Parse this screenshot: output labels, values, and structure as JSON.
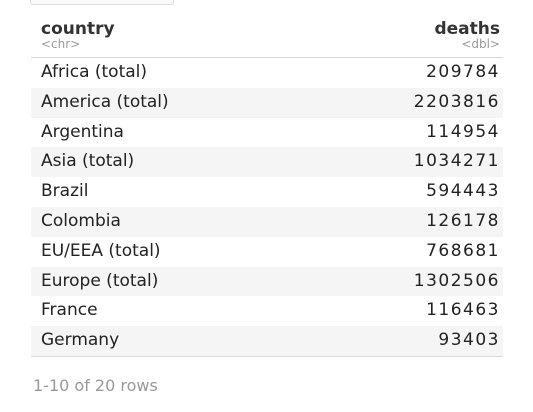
{
  "table": {
    "columns": [
      {
        "name": "country",
        "type": "<chr>"
      },
      {
        "name": "deaths",
        "type": "<dbl>"
      }
    ],
    "rows": [
      {
        "country": "Africa (total)",
        "deaths": "209784"
      },
      {
        "country": "America (total)",
        "deaths": "2203816"
      },
      {
        "country": "Argentina",
        "deaths": "114954"
      },
      {
        "country": "Asia (total)",
        "deaths": "1034271"
      },
      {
        "country": "Brazil",
        "deaths": "594443"
      },
      {
        "country": "Colombia",
        "deaths": "126178"
      },
      {
        "country": "EU/EEA (total)",
        "deaths": "768681"
      },
      {
        "country": "Europe (total)",
        "deaths": "1302506"
      },
      {
        "country": "France",
        "deaths": "116463"
      },
      {
        "country": "Germany",
        "deaths": "93403"
      }
    ]
  },
  "pagination": {
    "summary": "1-10 of 20 rows"
  }
}
